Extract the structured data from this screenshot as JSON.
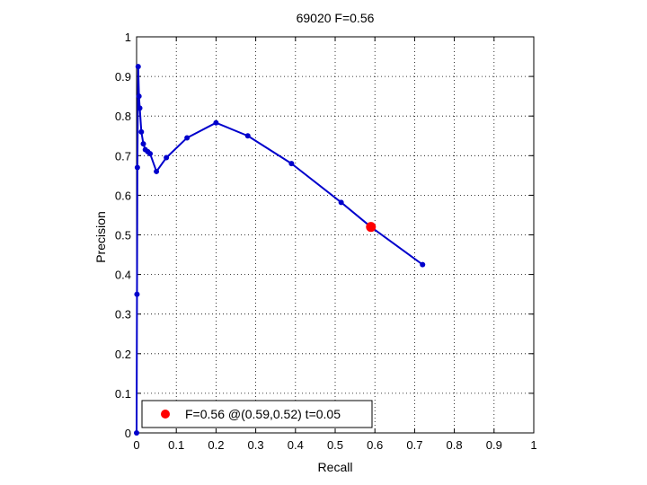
{
  "chart_data": {
    "type": "line",
    "title": "69020 F=0.56",
    "xlabel": "Recall",
    "ylabel": "Precision",
    "xlim": [
      0,
      1
    ],
    "ylim": [
      0,
      1
    ],
    "xticks": [
      "0",
      "0.1",
      "0.2",
      "0.3",
      "0.4",
      "0.5",
      "0.6",
      "0.7",
      "0.8",
      "0.9",
      "1"
    ],
    "yticks": [
      "0",
      "0.1",
      "0.2",
      "0.3",
      "0.4",
      "0.5",
      "0.6",
      "0.7",
      "0.8",
      "0.9",
      "1"
    ],
    "grid": true,
    "legend_position": "bottom-left",
    "series": [
      {
        "color": "#0000cc",
        "points": [
          [
            0.0,
            0.0
          ],
          [
            0.001,
            0.35
          ],
          [
            0.002,
            0.67
          ],
          [
            0.004,
            0.925
          ],
          [
            0.006,
            0.85
          ],
          [
            0.008,
            0.82
          ],
          [
            0.012,
            0.76
          ],
          [
            0.017,
            0.73
          ],
          [
            0.022,
            0.715
          ],
          [
            0.028,
            0.71
          ],
          [
            0.034,
            0.705
          ],
          [
            0.05,
            0.66
          ],
          [
            0.075,
            0.695
          ],
          [
            0.127,
            0.745
          ],
          [
            0.2,
            0.783
          ],
          [
            0.28,
            0.75
          ],
          [
            0.39,
            0.68
          ],
          [
            0.515,
            0.582
          ],
          [
            0.59,
            0.52
          ],
          [
            0.72,
            0.425
          ]
        ]
      }
    ],
    "highlight_point": {
      "x": 0.59,
      "y": 0.52,
      "color": "#ff0000",
      "label": "F=0.56 @(0.59,0.52) t=0.05"
    }
  }
}
